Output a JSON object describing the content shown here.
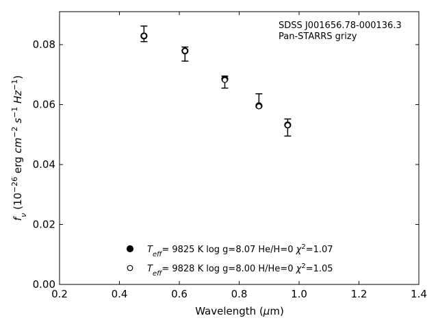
{
  "chart_data": {
    "type": "scatter",
    "annotation_lines": [
      "SDSS J001656.78-000136.3",
      "Pan-STARRS grizy"
    ],
    "xlabel": "Wavelength (μm)",
    "ylabel_html": "f<tspan baseline-shift='sub' font-size='11'>ν</tspan> (10<tspan baseline-shift='super' font-size='11'>−26</tspan> erg cm<tspan baseline-shift='super' font-size='11'>−2</tspan> s<tspan baseline-shift='super' font-size='11'>−1</tspan> Hz<tspan baseline-shift='super' font-size='11'>−1</tspan>)",
    "xlim": [
      0.2,
      1.4
    ],
    "ylim": [
      0.0,
      0.091
    ],
    "xticks": [
      0.2,
      0.4,
      0.6,
      0.8,
      1.0,
      1.2,
      1.4
    ],
    "xtick_labels": [
      "0.2",
      "0.4",
      "0.6",
      "0.8",
      "1.0",
      "1.2",
      "1.4"
    ],
    "yticks": [
      0.0,
      0.02,
      0.04,
      0.06,
      0.08
    ],
    "ytick_labels": [
      "0.00",
      "0.02",
      "0.04",
      "0.06",
      "0.08"
    ],
    "grid": false,
    "legend_position": "lower-center",
    "observed": {
      "x": [
        0.482,
        0.619,
        0.752,
        0.866,
        0.962
      ],
      "y": [
        0.0835,
        0.078,
        0.0683,
        0.06,
        0.0525
      ],
      "yerr_low": [
        0.0025,
        0.0035,
        0.0028,
        0.0007,
        0.003
      ],
      "yerr_high": [
        0.0027,
        0.0012,
        0.0012,
        0.0036,
        0.0027
      ]
    },
    "series": [
      {
        "marker": "filled-circle",
        "x": [
          0.482,
          0.619,
          0.752,
          0.866,
          0.962
        ],
        "y": [
          0.0829,
          0.0779,
          0.0685,
          0.0596,
          0.0532
        ],
        "legend": {
          "teff": "9825 K",
          "logg": "log g=8.07",
          "comp": "He/H=0",
          "chi": "=1.07"
        }
      },
      {
        "marker": "open-circle",
        "x": [
          0.482,
          0.619,
          0.752,
          0.866,
          0.962
        ],
        "y": [
          0.0829,
          0.0779,
          0.0682,
          0.0594,
          0.0531
        ],
        "legend": {
          "teff": "9828 K",
          "logg": "log g=8.00",
          "comp": "H/He=0",
          "chi": "=1.05"
        }
      }
    ]
  }
}
